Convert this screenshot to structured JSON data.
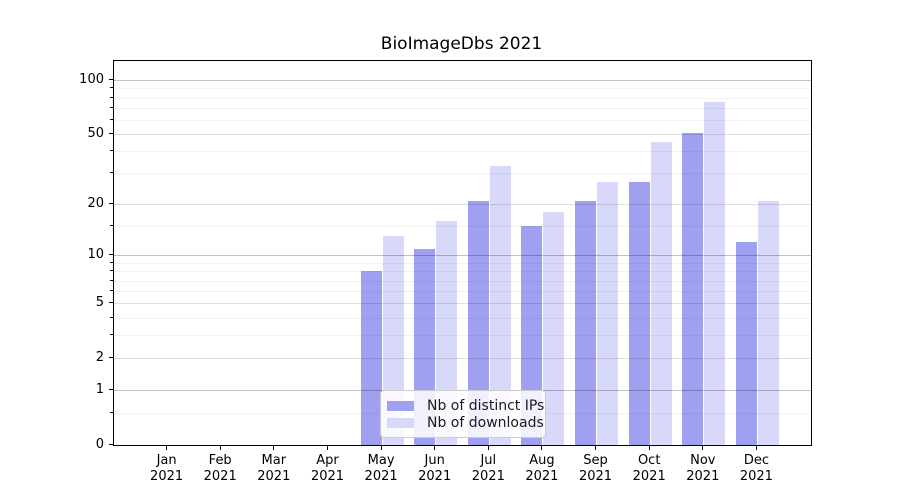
{
  "chart_data": {
    "type": "bar",
    "title": "BioImageDbs 2021",
    "x_categories": [
      {
        "month": "Jan",
        "year": "2021"
      },
      {
        "month": "Feb",
        "year": "2021"
      },
      {
        "month": "Mar",
        "year": "2021"
      },
      {
        "month": "Apr",
        "year": "2021"
      },
      {
        "month": "May",
        "year": "2021"
      },
      {
        "month": "Jun",
        "year": "2021"
      },
      {
        "month": "Jul",
        "year": "2021"
      },
      {
        "month": "Aug",
        "year": "2021"
      },
      {
        "month": "Sep",
        "year": "2021"
      },
      {
        "month": "Oct",
        "year": "2021"
      },
      {
        "month": "Nov",
        "year": "2021"
      },
      {
        "month": "Dec",
        "year": "2021"
      }
    ],
    "series": [
      {
        "name": "Nb of distinct IPs",
        "color": "#a0a0f0",
        "values": [
          0,
          0,
          0,
          0,
          8,
          11,
          21,
          15,
          21,
          27,
          51,
          12
        ]
      },
      {
        "name": "Nb of downloads",
        "color": "#d8d8fa",
        "values": [
          0,
          0,
          0,
          0,
          13,
          16,
          33,
          18,
          27,
          45,
          76,
          21
        ]
      }
    ],
    "y_axis": {
      "scale": "log1p",
      "ylim": [
        0,
        127.5
      ],
      "ticks": [
        0,
        1,
        2,
        5,
        10,
        20,
        50,
        100
      ],
      "emphasized_ticks": [
        1,
        10,
        100
      ],
      "minor_ticks": [
        0.5,
        3,
        4,
        6,
        7,
        8,
        9,
        15,
        30,
        40,
        60,
        70,
        80,
        90
      ]
    },
    "grid": true,
    "legend_position": "lower-left-of-center"
  }
}
